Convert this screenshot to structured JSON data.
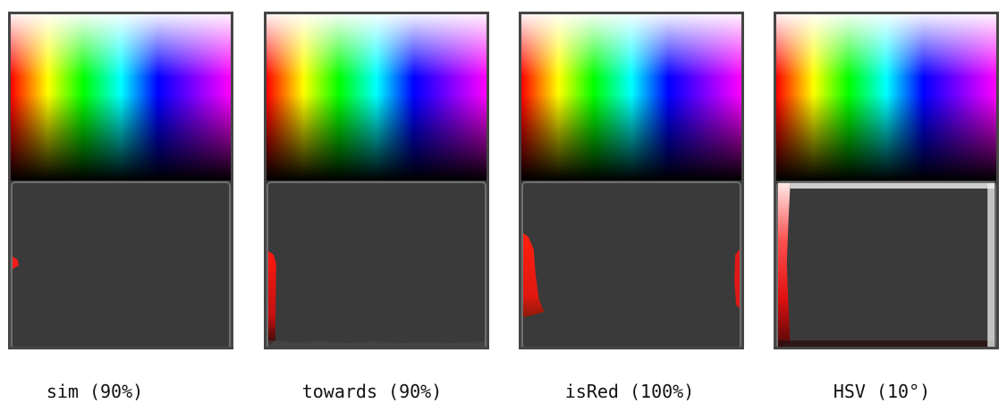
{
  "panels": [
    {
      "caption": "sim (90%)"
    },
    {
      "caption": "towards (90%)"
    },
    {
      "caption": "isRed (100%)"
    },
    {
      "caption": "HSV (10°)"
    }
  ],
  "colors": {
    "panel_background": "#3a3a3a",
    "panel_border": "#454545",
    "picker_border": "#6e6e6e",
    "highlight_red": "#ff1a1a",
    "caption_text": "#111111"
  }
}
